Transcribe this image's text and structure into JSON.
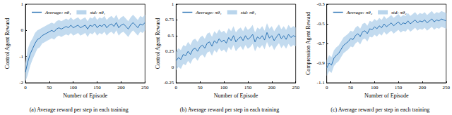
{
  "chart_data": [
    {
      "type": "line",
      "title": "(a) Average reward per step in each training",
      "x_label": "Number of Episode",
      "y_label": "Control Agent Reward",
      "xlim": [
        0,
        250
      ],
      "xticks": [
        0,
        50,
        100,
        150,
        200,
        250
      ],
      "ylim": [
        -2,
        1
      ],
      "yticks": [
        -2,
        -1,
        0,
        1
      ],
      "grid": false,
      "legend": "upper left",
      "x": [
        0,
        5,
        10,
        15,
        20,
        25,
        30,
        35,
        40,
        45,
        50,
        55,
        60,
        65,
        70,
        75,
        80,
        85,
        90,
        95,
        100,
        105,
        110,
        115,
        120,
        125,
        130,
        135,
        140,
        145,
        150,
        155,
        160,
        165,
        170,
        175,
        180,
        185,
        190,
        195,
        200,
        205,
        210,
        215,
        220,
        225,
        230,
        235,
        240,
        245,
        250
      ],
      "series": [
        {
          "name": "Average: πθ₁",
          "color": "#2e75b6",
          "values": [
            -1.6,
            -1.2,
            -0.9,
            -0.7,
            -0.5,
            -0.35,
            -0.3,
            -0.2,
            -0.15,
            -0.1,
            -0.05,
            0.0,
            -0.05,
            0.05,
            0.1,
            0.05,
            0.1,
            0.15,
            0.1,
            0.2,
            0.1,
            0.15,
            0.2,
            0.1,
            0.15,
            0.2,
            0.05,
            0.2,
            0.15,
            0.25,
            0.1,
            0.2,
            0.15,
            0.25,
            0.1,
            0.2,
            0.25,
            0.15,
            0.3,
            0.1,
            0.2,
            0.25,
            0.15,
            0.05,
            0.2,
            0.3,
            0.2,
            0.1,
            0.25,
            0.2,
            0.3
          ]
        }
      ],
      "std": {
        "name": "std: πθ₁",
        "color": "#b9d5ec",
        "lower": [
          -1.95,
          -1.7,
          -1.35,
          -1.1,
          -0.9,
          -0.7,
          -0.65,
          -0.5,
          -0.45,
          -0.4,
          -0.35,
          -0.3,
          -0.35,
          -0.25,
          -0.2,
          -0.25,
          -0.2,
          -0.15,
          -0.2,
          -0.1,
          -0.2,
          -0.15,
          -0.1,
          -0.2,
          -0.15,
          -0.1,
          -0.25,
          -0.1,
          -0.15,
          -0.05,
          -0.2,
          -0.1,
          -0.15,
          -0.05,
          -0.2,
          -0.1,
          -0.05,
          -0.15,
          0.0,
          -0.2,
          -0.1,
          -0.05,
          -0.15,
          -0.25,
          -0.1,
          0.0,
          -0.1,
          -0.2,
          -0.05,
          -0.1,
          0.0
        ],
        "upper": [
          -1.25,
          -0.7,
          -0.45,
          -0.3,
          -0.1,
          0.0,
          0.05,
          0.1,
          0.15,
          0.2,
          0.25,
          0.3,
          0.25,
          0.35,
          0.4,
          0.35,
          0.4,
          0.45,
          0.4,
          0.5,
          0.4,
          0.45,
          0.5,
          0.4,
          0.45,
          0.5,
          0.35,
          0.5,
          0.45,
          0.55,
          0.4,
          0.5,
          0.45,
          0.55,
          0.4,
          0.5,
          0.55,
          0.45,
          0.6,
          0.4,
          0.5,
          0.55,
          0.45,
          0.35,
          0.5,
          0.6,
          0.5,
          0.4,
          0.55,
          0.5,
          0.6
        ]
      }
    },
    {
      "type": "line",
      "title": "(b) Average reward per step in each training",
      "x_label": "Number of Episode",
      "y_label": "Control Agent Reward",
      "xlim": [
        0,
        250
      ],
      "xticks": [
        0,
        50,
        100,
        150,
        200,
        250
      ],
      "ylim": [
        -0.25,
        1
      ],
      "yticks": [
        -0.25,
        0,
        0.25,
        0.5,
        0.75,
        1
      ],
      "grid": false,
      "legend": "upper left",
      "x": [
        0,
        5,
        10,
        15,
        20,
        25,
        30,
        35,
        40,
        45,
        50,
        55,
        60,
        65,
        70,
        75,
        80,
        85,
        90,
        95,
        100,
        105,
        110,
        115,
        120,
        125,
        130,
        135,
        140,
        145,
        150,
        155,
        160,
        165,
        170,
        175,
        180,
        185,
        190,
        195,
        200,
        205,
        210,
        215,
        220,
        225,
        230,
        235,
        240,
        245,
        250
      ],
      "series": [
        {
          "name": "Average: πθ₁",
          "color": "#2e75b6",
          "values": [
            0.1,
            0.15,
            0.12,
            0.2,
            0.18,
            0.25,
            0.2,
            0.28,
            0.3,
            0.25,
            0.32,
            0.35,
            0.3,
            0.38,
            0.4,
            0.33,
            0.42,
            0.38,
            0.45,
            0.4,
            0.43,
            0.38,
            0.47,
            0.42,
            0.5,
            0.4,
            0.45,
            0.48,
            0.42,
            0.5,
            0.44,
            0.47,
            0.52,
            0.4,
            0.48,
            0.45,
            0.5,
            0.43,
            0.55,
            0.46,
            0.5,
            0.42,
            0.48,
            0.53,
            0.45,
            0.5,
            0.44,
            0.52,
            0.47,
            0.5,
            0.48
          ]
        }
      ],
      "std": {
        "name": "std: πθ₁",
        "color": "#b9d5ec",
        "lower": [
          -0.05,
          0.0,
          -0.03,
          0.05,
          0.03,
          0.1,
          0.05,
          0.13,
          0.15,
          0.1,
          0.17,
          0.2,
          0.15,
          0.23,
          0.25,
          0.18,
          0.27,
          0.23,
          0.3,
          0.25,
          0.28,
          0.23,
          0.32,
          0.27,
          0.35,
          0.25,
          0.3,
          0.33,
          0.27,
          0.35,
          0.29,
          0.32,
          0.37,
          0.25,
          0.33,
          0.3,
          0.35,
          0.28,
          0.4,
          0.31,
          0.35,
          0.27,
          0.33,
          0.38,
          0.3,
          0.35,
          0.29,
          0.37,
          0.32,
          0.35,
          0.33
        ],
        "upper": [
          0.25,
          0.3,
          0.27,
          0.35,
          0.33,
          0.4,
          0.35,
          0.43,
          0.45,
          0.4,
          0.47,
          0.5,
          0.45,
          0.53,
          0.55,
          0.48,
          0.57,
          0.53,
          0.6,
          0.55,
          0.58,
          0.53,
          0.62,
          0.57,
          0.65,
          0.55,
          0.6,
          0.63,
          0.57,
          0.65,
          0.59,
          0.62,
          0.67,
          0.55,
          0.63,
          0.6,
          0.65,
          0.58,
          0.7,
          0.61,
          0.65,
          0.57,
          0.63,
          0.68,
          0.6,
          0.65,
          0.59,
          0.67,
          0.62,
          0.65,
          0.63
        ]
      }
    },
    {
      "type": "line",
      "title": "(c) Average reward per step in each training",
      "x_label": "Number of Episode",
      "y_label": "Compression Agent Reward",
      "xlim": [
        0,
        250
      ],
      "xticks": [
        0,
        50,
        100,
        150,
        200,
        250
      ],
      "ylim": [
        -1.1,
        -0.3
      ],
      "yticks": [
        -1.1,
        -0.9,
        -0.7,
        -0.5,
        -0.3
      ],
      "grid": false,
      "legend": "upper left",
      "x": [
        0,
        5,
        10,
        15,
        20,
        25,
        30,
        35,
        40,
        45,
        50,
        55,
        60,
        65,
        70,
        75,
        80,
        85,
        90,
        95,
        100,
        105,
        110,
        115,
        120,
        125,
        130,
        135,
        140,
        145,
        150,
        155,
        160,
        165,
        170,
        175,
        180,
        185,
        190,
        195,
        200,
        205,
        210,
        215,
        220,
        225,
        230,
        235,
        240,
        245,
        250
      ],
      "series": [
        {
          "name": "Average: πθ₂",
          "color": "#2e75b6",
          "values": [
            -0.95,
            -0.9,
            -0.92,
            -0.85,
            -0.82,
            -0.8,
            -0.76,
            -0.72,
            -0.7,
            -0.68,
            -0.65,
            -0.66,
            -0.62,
            -0.6,
            -0.63,
            -0.58,
            -0.57,
            -0.6,
            -0.55,
            -0.56,
            -0.53,
            -0.55,
            -0.52,
            -0.54,
            -0.5,
            -0.53,
            -0.51,
            -0.49,
            -0.52,
            -0.5,
            -0.48,
            -0.51,
            -0.49,
            -0.5,
            -0.47,
            -0.5,
            -0.48,
            -0.46,
            -0.49,
            -0.47,
            -0.48,
            -0.46,
            -0.49,
            -0.47,
            -0.45,
            -0.48,
            -0.46,
            -0.47,
            -0.45,
            -0.46,
            -0.47
          ]
        }
      ],
      "std": {
        "name": "std: πθ₂",
        "color": "#b9d5ec",
        "lower": [
          -1.03,
          -0.98,
          -1.0,
          -0.93,
          -0.9,
          -0.88,
          -0.84,
          -0.8,
          -0.78,
          -0.76,
          -0.73,
          -0.74,
          -0.7,
          -0.68,
          -0.71,
          -0.66,
          -0.65,
          -0.68,
          -0.63,
          -0.64,
          -0.61,
          -0.63,
          -0.6,
          -0.62,
          -0.58,
          -0.61,
          -0.59,
          -0.57,
          -0.6,
          -0.58,
          -0.56,
          -0.59,
          -0.57,
          -0.58,
          -0.55,
          -0.58,
          -0.56,
          -0.54,
          -0.57,
          -0.55,
          -0.56,
          -0.54,
          -0.57,
          -0.55,
          -0.53,
          -0.56,
          -0.54,
          -0.55,
          -0.53,
          -0.54,
          -0.55
        ],
        "upper": [
          -0.87,
          -0.82,
          -0.84,
          -0.77,
          -0.74,
          -0.72,
          -0.68,
          -0.64,
          -0.62,
          -0.6,
          -0.57,
          -0.58,
          -0.54,
          -0.52,
          -0.55,
          -0.5,
          -0.49,
          -0.52,
          -0.47,
          -0.48,
          -0.45,
          -0.47,
          -0.44,
          -0.46,
          -0.42,
          -0.45,
          -0.43,
          -0.41,
          -0.44,
          -0.42,
          -0.4,
          -0.43,
          -0.41,
          -0.42,
          -0.39,
          -0.42,
          -0.4,
          -0.38,
          -0.41,
          -0.39,
          -0.4,
          -0.38,
          -0.41,
          -0.39,
          -0.37,
          -0.4,
          -0.38,
          -0.39,
          -0.37,
          -0.38,
          -0.39
        ]
      }
    }
  ]
}
